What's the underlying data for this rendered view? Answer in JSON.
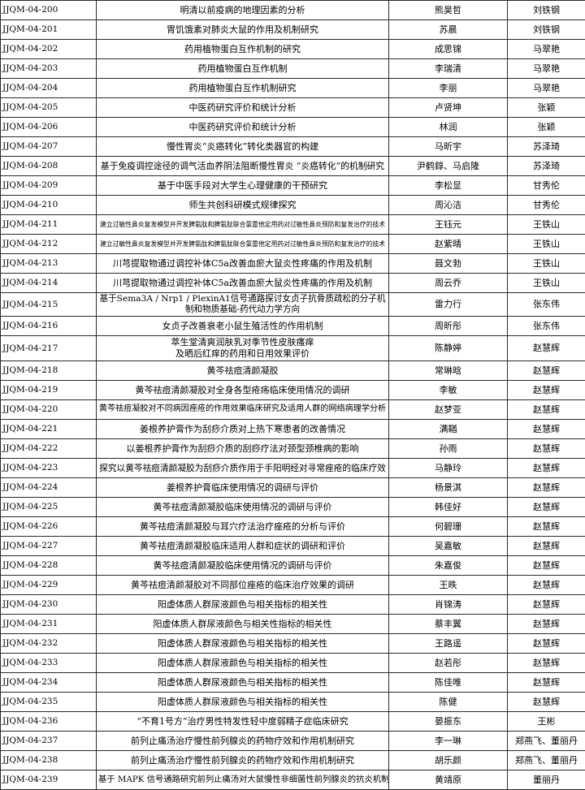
{
  "colors": {
    "background": "#ffffff",
    "border": "#2a2a2a",
    "text": "#000000"
  },
  "table": {
    "rows": [
      {
        "id": "JJQM-04-200",
        "title": "明清以前疫病的地理因素的分析",
        "student": "熊昊哲",
        "advisor": "刘铁钢"
      },
      {
        "id": "JJQM-04-201",
        "title": "胃饥饿素对肺炎大鼠的作用及机制研究",
        "student": "苏晨",
        "advisor": "刘铁钢"
      },
      {
        "id": "JJQM-04-202",
        "title": "药用植物蛋白互作机制的研究",
        "student": "成思锦",
        "advisor": "马翠艳"
      },
      {
        "id": "JJQM-04-203",
        "title": "药用植物蛋白互作机制",
        "student": "李瑞清",
        "advisor": "马翠艳"
      },
      {
        "id": "JJQM-04-204",
        "title": "药用植物蛋白互作机制研究",
        "student": "李丽",
        "advisor": "马翠艳"
      },
      {
        "id": "JJQM-04-205",
        "title": "中医药研究评价和统计分析",
        "student": "卢贤坤",
        "advisor": "张颖"
      },
      {
        "id": "JJQM-04-206",
        "title": "中医药研究评价和统计分析",
        "student": "林润",
        "advisor": "张颖"
      },
      {
        "id": "JJQM-04-207",
        "title": "慢性胃炎“炎癌转化”转化类器官的构建",
        "student": "马昕宇",
        "advisor": "苏泽琦"
      },
      {
        "id": "JJQM-04-208",
        "title": "基于免疫调控途径的调气活血养阴法阻断慢性胃炎 “炎癌转化”的机制研究",
        "student": "尹鹤錞、马启隆",
        "advisor": "苏泽琦"
      },
      {
        "id": "JJQM-04-209",
        "title": "基于中医手段对大学生心理健康的干预研究",
        "student": "李松显",
        "advisor": "甘秀伦"
      },
      {
        "id": "JJQM-04-210",
        "title": "师生共创科研模式规律探究",
        "student": "周沁洁",
        "advisor": "甘秀伦"
      },
      {
        "id": "JJQM-04-211",
        "title": "建立过敏性鼻炎复发模型并开发脾氨肽和脾氨肽联合氯雷他定用药对过敏性鼻炎预防和复发治疗的技术",
        "student": "王钰元",
        "advisor": "王铁山"
      },
      {
        "id": "JJQM-04-212",
        "title": "建立过敏性鼻炎复发模型并开发脾氨肽和脾氨肽联合氯雷他定用药对过敏性鼻炎预防和复发治疗的技术",
        "student": "赵紫晴",
        "advisor": "王铁山"
      },
      {
        "id": "JJQM-04-213",
        "title": "川芎提取物通过调控补体C5a改善血瘀大鼠炎性疼痛的作用及机制",
        "student": "聂文勃",
        "advisor": "王铁山"
      },
      {
        "id": "JJQM-04-214",
        "title": "川芎提取物通过调控补体C5a改善血瘀大鼠炎性疼痛的作用及机制",
        "student": "周云乔",
        "advisor": "王铁山"
      },
      {
        "id": "JJQM-04-215",
        "title": "基于Sema3A / Nrp1 / PlexinA1信号通路探讨女贞子抗骨质疏松的分子机\n制和物质基础-药代动力学方向",
        "student": "雷力行",
        "advisor": "张东伟"
      },
      {
        "id": "JJQM-04-216",
        "title": "女贞子改善衰老小鼠生殖活性的作用机制",
        "student": "周昕彤",
        "advisor": "张东伟"
      },
      {
        "id": "JJQM-04-217",
        "title": "萃生堂清爽润肤乳对季节性皮肤瘙痒\n及晒后红痒的药用和日用效果评价",
        "student": "陈静婷",
        "advisor": "赵慧辉"
      },
      {
        "id": "JJQM-04-218",
        "title": "黄芩祛痘清颜凝胶",
        "student": "常琳晗",
        "advisor": "赵慧辉"
      },
      {
        "id": "JJQM-04-219",
        "title": "黄芩祛痘清颜凝胶对全身各型疮疡临床使用情况的调研",
        "student": "李敏",
        "advisor": "赵慧辉"
      },
      {
        "id": "JJQM-04-220",
        "title": "黄芩祛痘凝胶对不同病因痤疮的作用效果临床研究及适用人群的网络病理学分析",
        "student": "赵梦亚",
        "advisor": "赵慧辉"
      },
      {
        "id": "JJQM-04-221",
        "title": "姜根养护膏作为刮痧介质对上热下寒患者的改善情况",
        "student": "满鞧",
        "advisor": "赵慧辉"
      },
      {
        "id": "JJQM-04-222",
        "title": "以姜根养护膏作为刮痧介质的刮痧疗法对颈型颈椎病的影响",
        "student": "孙雨",
        "advisor": "赵慧辉"
      },
      {
        "id": "JJQM-04-223",
        "title": "探究以黄芩祛痘清颜凝胶为刮痧介质作用于手阳明经对寻常痤疮的临床疗效",
        "student": "马静玲",
        "advisor": "赵慧辉"
      },
      {
        "id": "JJQM-04-224",
        "title": "姜根养护膏临床使用情况的调研与评价",
        "student": "杨景淇",
        "advisor": "赵慧辉"
      },
      {
        "id": "JJQM-04-225",
        "title": "黄芩祛痘清颜凝胶临床使用情况的调研与评价",
        "student": "韩佳好",
        "advisor": "赵慧辉"
      },
      {
        "id": "JJQM-04-226",
        "title": "黄芩祛痘清颜凝胶与耳穴疗法治疗痤疮的分析与评价",
        "student": "何碧珊",
        "advisor": "赵慧辉"
      },
      {
        "id": "JJQM-04-227",
        "title": "黄芩祛痘清颜凝胶临床适用人群和症状的调研和评价",
        "student": "吴嘉敏",
        "advisor": "赵慧辉"
      },
      {
        "id": "JJQM-04-228",
        "title": "黄芩祛痘清颜凝胶临床使用情况的调研与评价",
        "student": "朱嘉俊",
        "advisor": "赵慧辉"
      },
      {
        "id": "JJQM-04-229",
        "title": "黄芩祛痘清颜凝胶对不同部位痤疮的临床治疗效果的调研",
        "student": "王昳",
        "advisor": "赵慧辉"
      },
      {
        "id": "JJQM-04-230",
        "title": "阳虚体质人群尿液颜色与相关指标的相关性",
        "student": "肖锦涛",
        "advisor": "赵慧辉"
      },
      {
        "id": "JJQM-04-231",
        "title": "阳虚体质人群尿液颜色与相关性指标的相关性",
        "student": "蔡丰翼",
        "advisor": "赵慧辉"
      },
      {
        "id": "JJQM-04-232",
        "title": "阳虚体质人群尿液颜色与相关指标的相关性",
        "student": "王路遥",
        "advisor": "赵慧辉"
      },
      {
        "id": "JJQM-04-233",
        "title": "阳虚体质人群尿液颜色与相关指标的相关性",
        "student": "赵若彤",
        "advisor": "赵慧辉"
      },
      {
        "id": "JJQM-04-234",
        "title": "阳虚体质人群尿液颜色与相关指标的相关性",
        "student": "陈佳唯",
        "advisor": "赵慧辉"
      },
      {
        "id": "JJQM-04-235",
        "title": "阳虚体质人群尿液颜色与相关指标的相关性",
        "student": "陈健",
        "advisor": "赵慧辉"
      },
      {
        "id": "JJQM-04-236",
        "title": "“不育1号方”治疗男性特发性轻中度弱精子症临床研究",
        "student": "晏振东",
        "advisor": "王彬"
      },
      {
        "id": "JJQM-04-237",
        "title": "前列止痛汤治疗慢性前列腺炎的药物疗效和作用机制研究",
        "student": "李一琳",
        "advisor": "郑燕飞、董丽丹"
      },
      {
        "id": "JJQM-04-238",
        "title": "前列止痛汤治疗慢性前列腺炎的药物疗效和作用机制研究",
        "student": "胡乐颜",
        "advisor": "郑燕飞、董丽丹"
      },
      {
        "id": "JJQM-04-239",
        "title": "基于 MAPK 信号通路研究前列止痛汤对大鼠慢性非细菌性前列腺炎的抗炎机制",
        "student": "黄靖原",
        "advisor": "董丽丹"
      }
    ]
  }
}
